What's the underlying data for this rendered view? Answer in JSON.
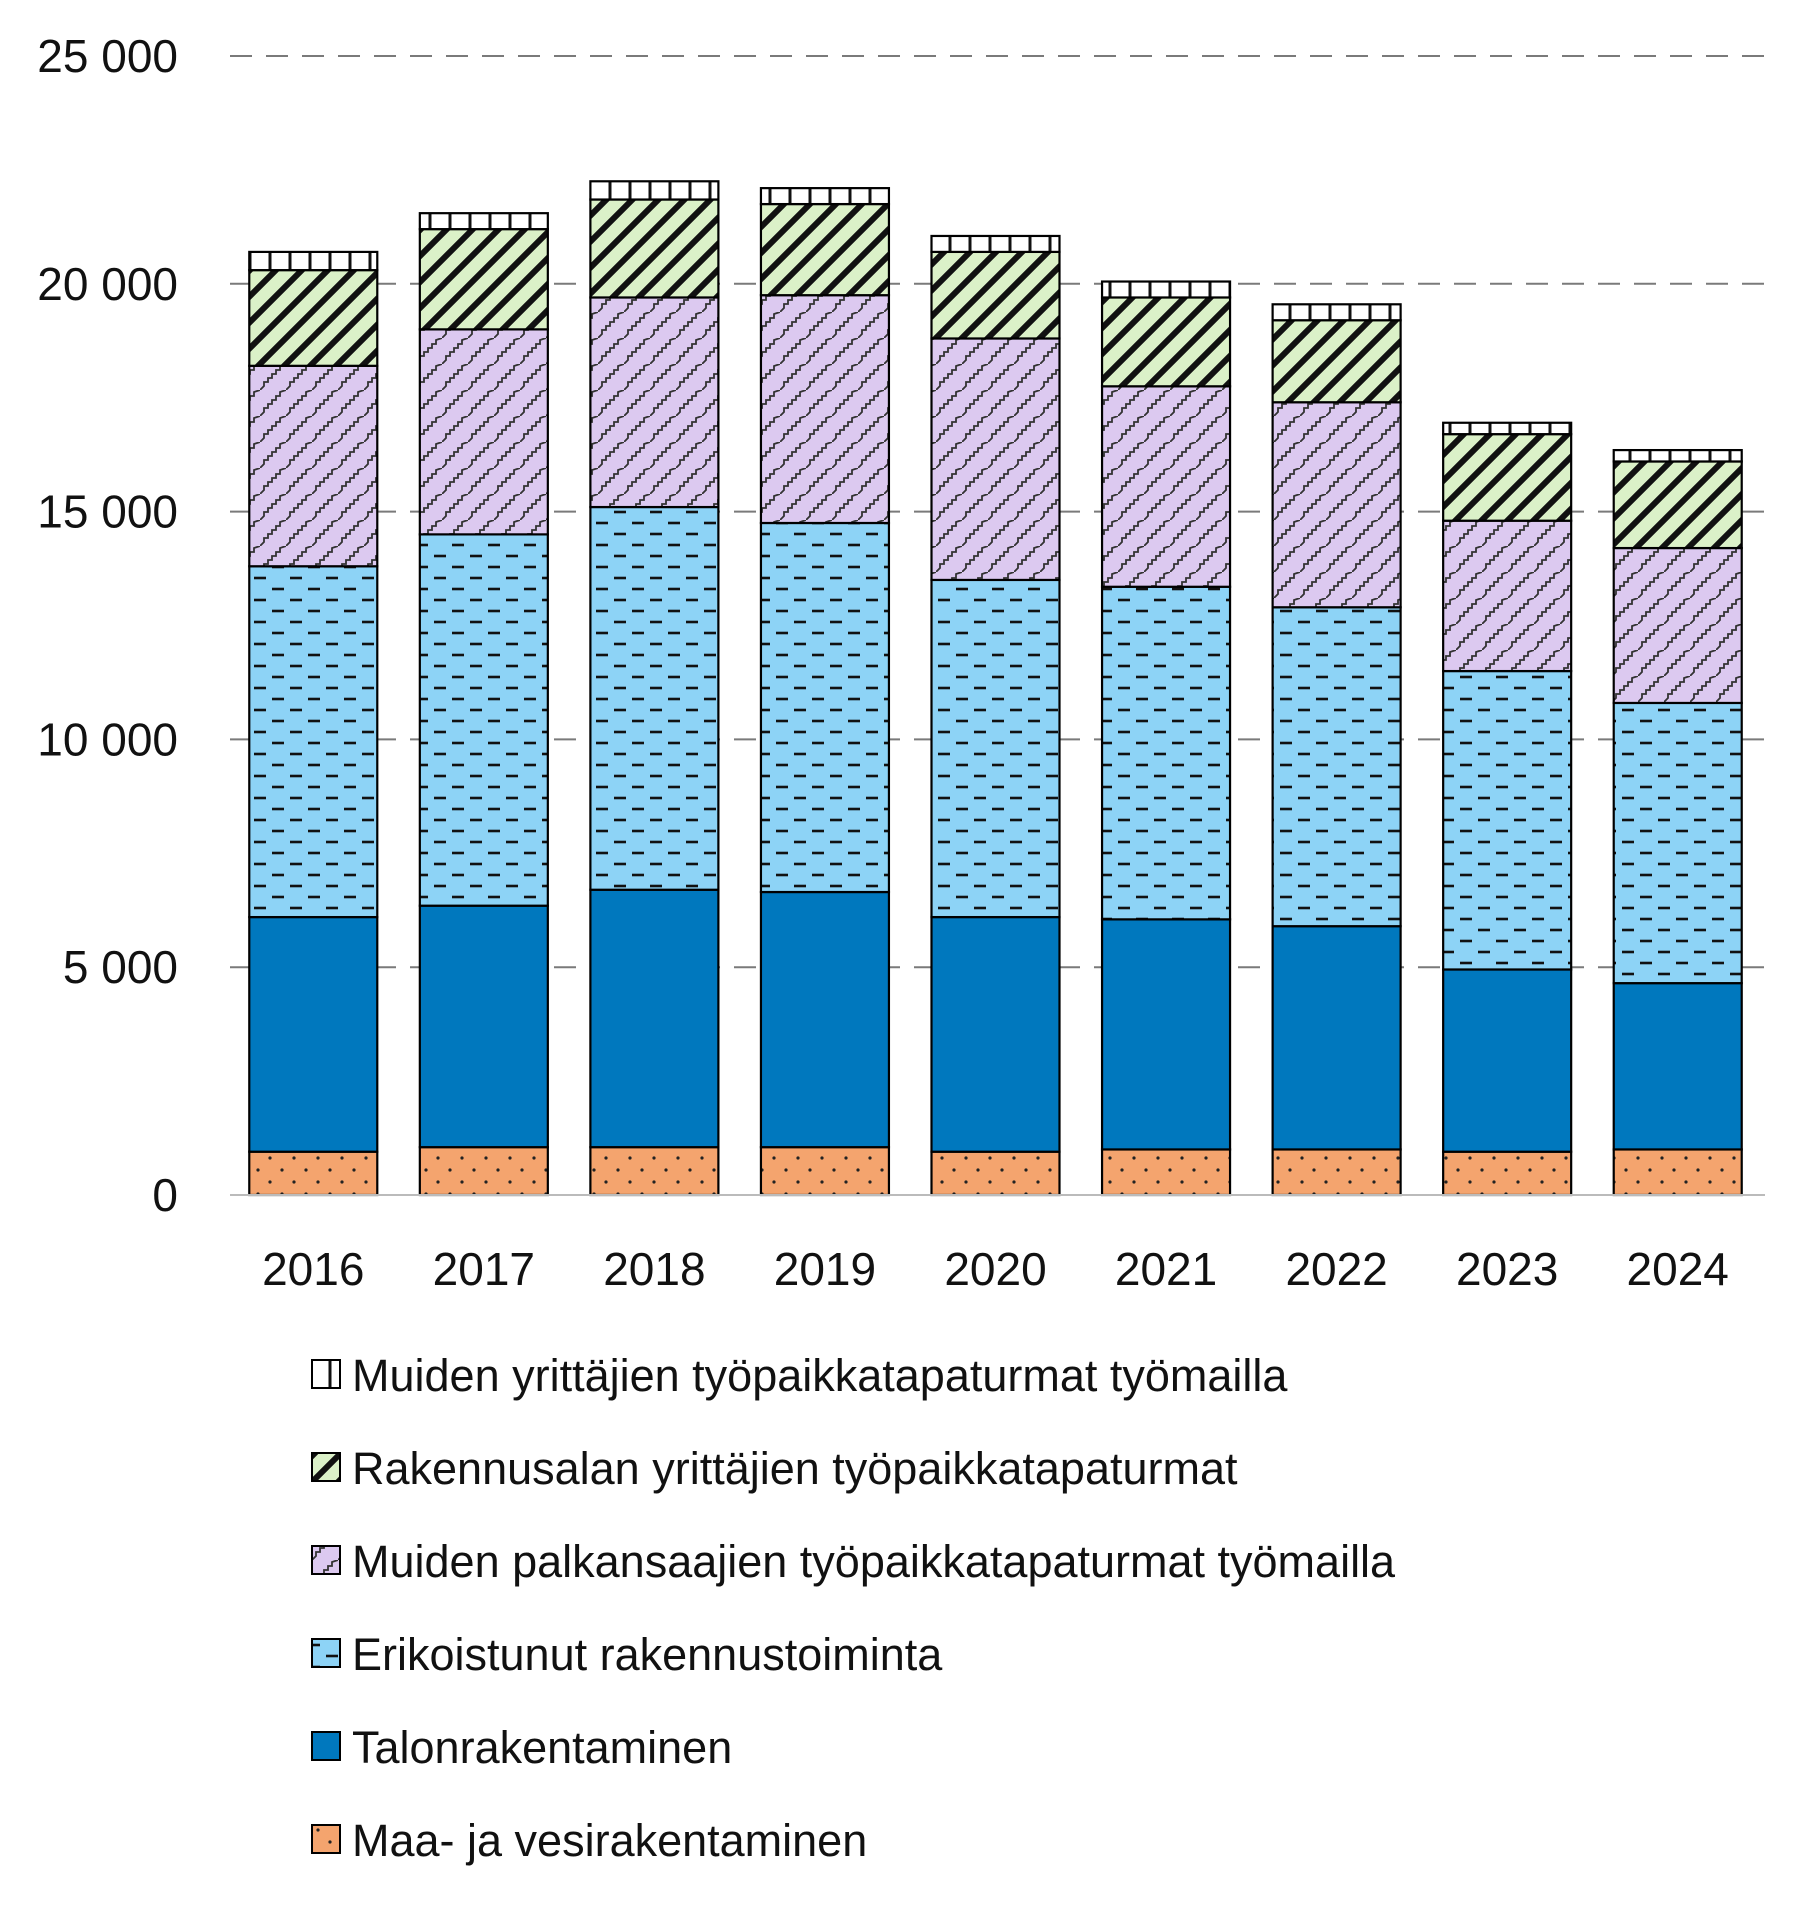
{
  "chart_data": {
    "type": "bar",
    "stacked": true,
    "categories": [
      "2016",
      "2017",
      "2018",
      "2019",
      "2020",
      "2021",
      "2022",
      "2023",
      "2024"
    ],
    "ylim": [
      0,
      25000
    ],
    "yticks": [
      0,
      5000,
      10000,
      15000,
      20000,
      25000
    ],
    "ytick_labels": [
      "0",
      "5 000",
      "10 000",
      "15 000",
      "20 000",
      "25 000"
    ],
    "grid": true,
    "legend_position": "bottom",
    "series": [
      {
        "name": "Maa- ja vesirakentaminen",
        "color": "#F4A46E",
        "pattern": "dots",
        "values": [
          950,
          1050,
          1050,
          1050,
          950,
          1000,
          1000,
          950,
          1000
        ]
      },
      {
        "name": "Talonrakentaminen",
        "color": "#0078BE",
        "pattern": "solid",
        "values": [
          5150,
          5300,
          5650,
          5600,
          5150,
          5050,
          4900,
          4000,
          3650
        ]
      },
      {
        "name": "Erikoistunut rakennustoiminta",
        "color": "#8DD3F6",
        "pattern": "dashes",
        "values": [
          7700,
          8150,
          8400,
          8100,
          7400,
          7300,
          7000,
          6550,
          6150
        ]
      },
      {
        "name": "Muiden palkansaajien työpaikkatapaturmat työmailla",
        "color": "#DCC9F0",
        "pattern": "zigzag",
        "values": [
          4400,
          4500,
          4600,
          5000,
          5300,
          4400,
          4500,
          3300,
          3400
        ]
      },
      {
        "name": "Rakennusalan yrittäjien työpaikkatapaturmat",
        "color": "#DBF1C8",
        "pattern": "diagonal",
        "values": [
          2100,
          2200,
          2150,
          2000,
          1900,
          1950,
          1800,
          1900,
          1900
        ]
      },
      {
        "name": "Muiden yrittäjien työpaikkatapaturmat työmailla",
        "color": "#FFFFFF",
        "pattern": "ticks",
        "values": [
          400,
          350,
          400,
          350,
          350,
          350,
          350,
          250,
          250
        ]
      }
    ]
  }
}
